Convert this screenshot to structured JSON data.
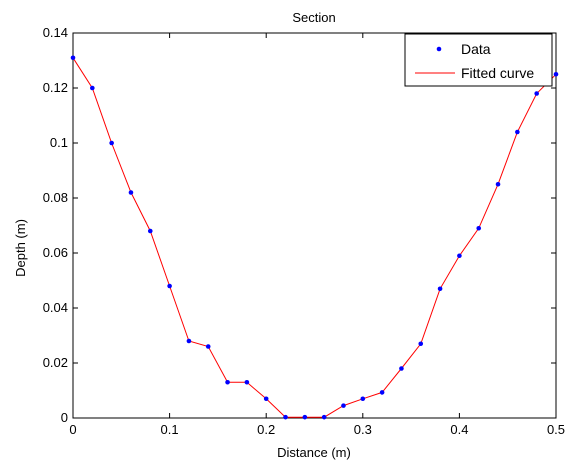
{
  "chart_data": {
    "type": "line",
    "title": "Section",
    "xlabel": "Distance (m)",
    "ylabel": "Depth (m)",
    "xlim": [
      0,
      0.5
    ],
    "ylim": [
      0,
      0.14
    ],
    "xticks": [
      0,
      0.1,
      0.2,
      0.3,
      0.4,
      0.5
    ],
    "xtick_labels": [
      "0",
      "0.1",
      "0.2",
      "0.3",
      "0.4",
      "0.5"
    ],
    "yticks": [
      0,
      0.02,
      0.04,
      0.06,
      0.08,
      0.1,
      0.12,
      0.14
    ],
    "ytick_labels": [
      "0",
      "0.02",
      "0.04",
      "0.06",
      "0.08",
      "0.1",
      "0.12",
      "0.14"
    ],
    "grid": false,
    "legend_position": "top-right",
    "x": [
      0,
      0.02,
      0.04,
      0.06,
      0.08,
      0.1,
      0.12,
      0.14,
      0.16,
      0.18,
      0.2,
      0.22,
      0.24,
      0.26,
      0.28,
      0.3,
      0.32,
      0.34,
      0.36,
      0.38,
      0.4,
      0.42,
      0.44,
      0.46,
      0.48,
      0.5
    ],
    "series": [
      {
        "name": "Data",
        "style": "points",
        "color": "#0000ff",
        "values": [
          0.131,
          0.12,
          0.1,
          0.082,
          0.068,
          0.048,
          0.028,
          0.026,
          0.013,
          0.013,
          0.007,
          0.0003,
          0.0003,
          0.0003,
          0.0045,
          0.007,
          0.0093,
          0.018,
          0.027,
          0.047,
          0.059,
          0.069,
          0.085,
          0.104,
          0.118,
          0.125
        ]
      },
      {
        "name": "Fitted curve",
        "style": "line",
        "color": "#ff0000",
        "values": [
          0.131,
          0.12,
          0.1,
          0.082,
          0.068,
          0.048,
          0.028,
          0.026,
          0.013,
          0.013,
          0.007,
          0.0003,
          0.0003,
          0.0003,
          0.0045,
          0.007,
          0.0093,
          0.018,
          0.027,
          0.047,
          0.059,
          0.069,
          0.085,
          0.104,
          0.118,
          0.125
        ]
      }
    ]
  }
}
